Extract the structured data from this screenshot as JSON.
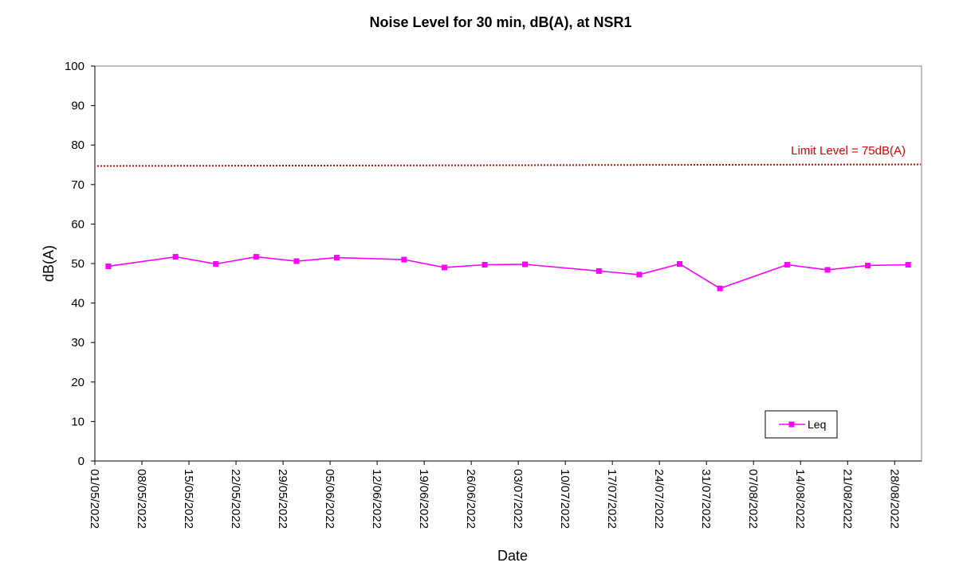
{
  "chart_data": {
    "type": "line",
    "title": "Noise Level for 30 min, dB(A), at NSR1",
    "xlabel": "Date",
    "ylabel": "dB(A)",
    "ylim": [
      0,
      100
    ],
    "yticks": [
      0,
      10,
      20,
      30,
      40,
      50,
      60,
      70,
      80,
      90,
      100
    ],
    "xlim": [
      "2022-05-01",
      "2022-09-01"
    ],
    "xtick_labels": [
      "01/05/2022",
      "08/05/2022",
      "15/05/2022",
      "22/05/2022",
      "29/05/2022",
      "05/06/2022",
      "12/06/2022",
      "19/06/2022",
      "26/06/2022",
      "03/07/2022",
      "10/07/2022",
      "17/07/2022",
      "24/07/2022",
      "31/07/2022",
      "07/08/2022",
      "14/08/2022",
      "21/08/2022",
      "28/08/2022"
    ],
    "grid": false,
    "legend_position": "bottom-right",
    "series": [
      {
        "name": "Leq",
        "color": "#ff00ff",
        "marker": "square",
        "x": [
          "2022-05-03",
          "2022-05-13",
          "2022-05-19",
          "2022-05-25",
          "2022-05-31",
          "2022-06-06",
          "2022-06-16",
          "2022-06-22",
          "2022-06-28",
          "2022-07-04",
          "2022-07-15",
          "2022-07-21",
          "2022-07-27",
          "2022-08-02",
          "2022-08-12",
          "2022-08-18",
          "2022-08-24",
          "2022-08-30"
        ],
        "y": [
          49.3,
          51.7,
          49.9,
          51.7,
          50.6,
          51.5,
          51.0,
          49.0,
          49.7,
          49.8,
          48.1,
          47.2,
          49.9,
          43.7,
          49.7,
          48.4,
          49.5,
          49.7
        ]
      }
    ],
    "limit_line": {
      "value": 75,
      "label": "Limit Level = 75dB(A)",
      "color": "#dd0000"
    }
  }
}
